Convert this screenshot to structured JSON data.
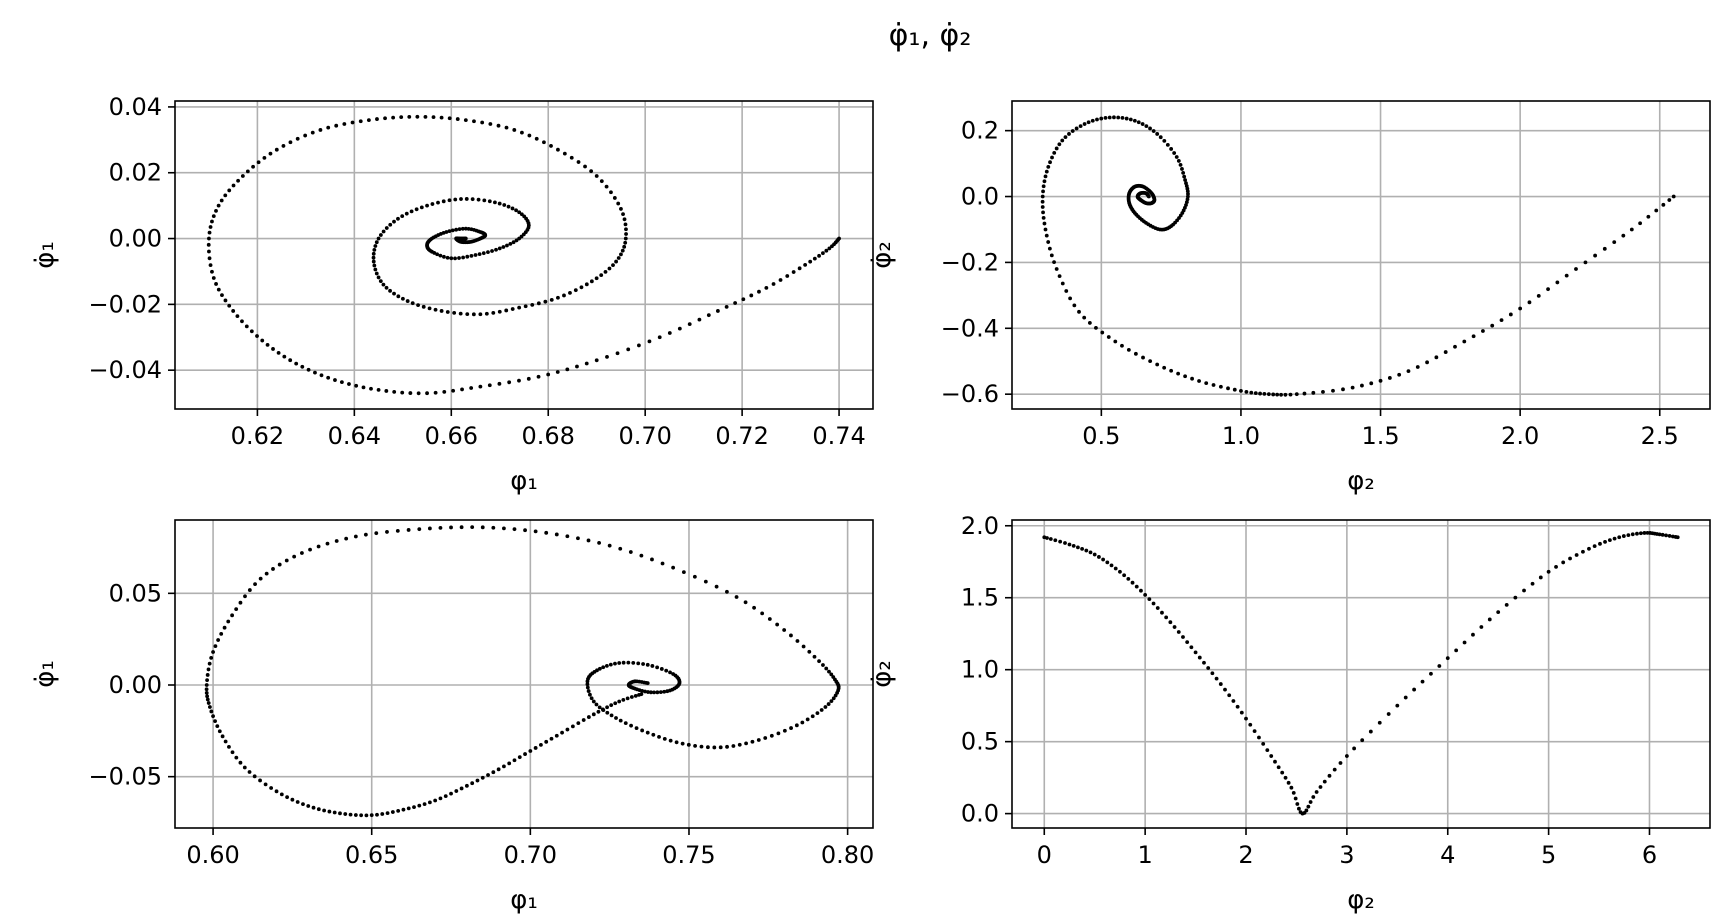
{
  "figure": {
    "suptitle": "φ̇₁, φ̇₂"
  },
  "chart_data": [
    {
      "type": "scatter",
      "panel": "top-left",
      "xlabel": "φ₁",
      "ylabel": "φ̇₁",
      "xlim": [
        0.603,
        0.747
      ],
      "ylim": [
        -0.0518,
        0.0418
      ],
      "xticks": [
        0.62,
        0.64,
        0.66,
        0.68,
        0.7,
        0.72,
        0.74
      ],
      "xticklabels": [
        "0.62",
        "0.64",
        "0.66",
        "0.68",
        "0.70",
        "0.72",
        "0.74"
      ],
      "yticks": [
        -0.04,
        -0.02,
        0.0,
        0.02,
        0.04
      ],
      "yticklabels": [
        "−0.04",
        "−0.02",
        "0.00",
        "0.02",
        "0.04"
      ],
      "grid": true,
      "series": [
        {
          "color": "#000000",
          "x": [
            0.74,
            0.738,
            0.733,
            0.725,
            0.715,
            0.703,
            0.69,
            0.678,
            0.666,
            0.655,
            0.645,
            0.636,
            0.628,
            0.621,
            0.615,
            0.611,
            0.61,
            0.612,
            0.617,
            0.624,
            0.633,
            0.643,
            0.653,
            0.663,
            0.673,
            0.682,
            0.69,
            0.695,
            0.696,
            0.694,
            0.689,
            0.682,
            0.674,
            0.666,
            0.658,
            0.651,
            0.646,
            0.644,
            0.645,
            0.649,
            0.655,
            0.662,
            0.669,
            0.674,
            0.676,
            0.674,
            0.67,
            0.665,
            0.66,
            0.656,
            0.655,
            0.656,
            0.659,
            0.663,
            0.666,
            0.667,
            0.666,
            0.664,
            0.662,
            0.661,
            0.662,
            0.663
          ],
          "y": [
            0.0,
            -0.003,
            -0.008,
            -0.015,
            -0.022,
            -0.03,
            -0.037,
            -0.042,
            -0.045,
            -0.047,
            -0.046,
            -0.043,
            -0.038,
            -0.031,
            -0.022,
            -0.012,
            0.0,
            0.01,
            0.019,
            0.027,
            0.033,
            0.036,
            0.037,
            0.036,
            0.033,
            0.027,
            0.019,
            0.009,
            0.0,
            -0.007,
            -0.013,
            -0.018,
            -0.021,
            -0.023,
            -0.022,
            -0.019,
            -0.014,
            -0.007,
            0.0,
            0.006,
            0.01,
            0.012,
            0.011,
            0.008,
            0.004,
            0.0,
            -0.003,
            -0.005,
            -0.006,
            -0.004,
            -0.002,
            0.0,
            0.002,
            0.003,
            0.002,
            0.001,
            0.0,
            -0.001,
            -0.001,
            0.0,
            0.0,
            0.0
          ]
        }
      ]
    },
    {
      "type": "scatter",
      "panel": "top-right",
      "xlabel": "φ₂",
      "ylabel": "φ̇₂",
      "xlim": [
        0.18,
        2.68
      ],
      "ylim": [
        -0.645,
        0.29
      ],
      "xticks": [
        0.5,
        1.0,
        1.5,
        2.0,
        2.5
      ],
      "xticklabels": [
        "0.5",
        "1.0",
        "1.5",
        "2.0",
        "2.5"
      ],
      "yticks": [
        -0.6,
        -0.4,
        -0.2,
        0.0,
        0.2
      ],
      "yticklabels": [
        "−0.6",
        "−0.4",
        "−0.2",
        "0.0",
        "0.2"
      ],
      "grid": true,
      "series": [
        {
          "color": "#000000",
          "x": [
            2.55,
            2.4,
            2.2,
            2.0,
            1.8,
            1.6,
            1.4,
            1.2,
            1.1,
            1.0,
            0.85,
            0.7,
            0.55,
            0.42,
            0.34,
            0.3,
            0.29,
            0.31,
            0.36,
            0.44,
            0.53,
            0.62,
            0.7,
            0.77,
            0.8,
            0.81,
            0.79,
            0.75,
            0.71,
            0.66,
            0.62,
            0.6,
            0.6,
            0.62,
            0.65,
            0.68,
            0.69,
            0.68,
            0.66,
            0.64,
            0.63,
            0.64,
            0.66,
            0.67
          ],
          "y": [
            0.0,
            -0.1,
            -0.22,
            -0.34,
            -0.44,
            -0.53,
            -0.58,
            -0.6,
            -0.6,
            -0.59,
            -0.56,
            -0.51,
            -0.44,
            -0.35,
            -0.22,
            -0.1,
            0.0,
            0.09,
            0.17,
            0.22,
            0.24,
            0.23,
            0.19,
            0.12,
            0.05,
            0.0,
            -0.05,
            -0.09,
            -0.1,
            -0.08,
            -0.05,
            -0.02,
            0.01,
            0.03,
            0.03,
            0.01,
            -0.01,
            -0.02,
            -0.02,
            -0.01,
            0.0,
            0.01,
            0.01,
            0.0
          ]
        }
      ]
    },
    {
      "type": "scatter",
      "panel": "bottom-left",
      "xlabel": "φ₁",
      "ylabel": "φ̇₁",
      "xlim": [
        0.588,
        0.808
      ],
      "ylim": [
        -0.078,
        0.09
      ],
      "xticks": [
        0.6,
        0.65,
        0.7,
        0.75,
        0.8
      ],
      "xticklabels": [
        "0.60",
        "0.65",
        "0.70",
        "0.75",
        "0.80"
      ],
      "yticks": [
        -0.05,
        0.0,
        0.05
      ],
      "yticklabels": [
        "−0.05",
        "0.00",
        "0.05"
      ],
      "grid": true,
      "series": [
        {
          "color": "#000000",
          "x": [
            0.735,
            0.728,
            0.72,
            0.71,
            0.7,
            0.69,
            0.68,
            0.67,
            0.66,
            0.65,
            0.64,
            0.63,
            0.62,
            0.61,
            0.603,
            0.599,
            0.598,
            0.6,
            0.606,
            0.615,
            0.628,
            0.645,
            0.665,
            0.685,
            0.705,
            0.725,
            0.745,
            0.765,
            0.78,
            0.791,
            0.796,
            0.797,
            0.793,
            0.784,
            0.772,
            0.76,
            0.748,
            0.737,
            0.727,
            0.72,
            0.718,
            0.721,
            0.728,
            0.737,
            0.745,
            0.747,
            0.744,
            0.738,
            0.733,
            0.731,
            0.733,
            0.737
          ],
          "y": [
            -0.005,
            -0.009,
            -0.016,
            -0.026,
            -0.036,
            -0.046,
            -0.055,
            -0.063,
            -0.068,
            -0.071,
            -0.07,
            -0.066,
            -0.058,
            -0.045,
            -0.028,
            -0.012,
            0.0,
            0.018,
            0.038,
            0.058,
            0.072,
            0.081,
            0.085,
            0.086,
            0.083,
            0.076,
            0.064,
            0.048,
            0.03,
            0.013,
            0.003,
            -0.003,
            -0.012,
            -0.022,
            -0.03,
            -0.034,
            -0.032,
            -0.026,
            -0.018,
            -0.009,
            0.002,
            0.008,
            0.012,
            0.011,
            0.006,
            0.001,
            -0.003,
            -0.004,
            -0.002,
            0.0,
            0.002,
            0.001
          ]
        }
      ]
    },
    {
      "type": "scatter",
      "panel": "bottom-right",
      "xlabel": "φ₂",
      "ylabel": "φ̇₂",
      "xlim": [
        -0.32,
        6.6
      ],
      "ylim": [
        -0.1,
        2.04
      ],
      "xticks": [
        0,
        1,
        2,
        3,
        4,
        5,
        6
      ],
      "xticklabels": [
        "0",
        "1",
        "2",
        "3",
        "4",
        "5",
        "6"
      ],
      "yticks": [
        0.0,
        0.5,
        1.0,
        1.5,
        2.0
      ],
      "yticklabels": [
        "0.0",
        "0.5",
        "1.0",
        "1.5",
        "2.0"
      ],
      "grid": true,
      "series": [
        {
          "color": "#000000",
          "x": [
            0.0,
            0.25,
            0.5,
            0.75,
            1.0,
            1.25,
            1.5,
            1.75,
            2.0,
            2.25,
            2.45,
            2.56,
            2.7,
            3.0,
            3.5,
            4.0,
            4.5,
            5.0,
            5.4,
            5.7,
            5.95,
            6.1,
            6.28
          ],
          "y": [
            1.92,
            1.87,
            1.8,
            1.68,
            1.52,
            1.33,
            1.12,
            0.9,
            0.66,
            0.4,
            0.18,
            0.0,
            0.15,
            0.4,
            0.75,
            1.08,
            1.4,
            1.68,
            1.84,
            1.92,
            1.95,
            1.94,
            1.92
          ]
        }
      ]
    }
  ]
}
